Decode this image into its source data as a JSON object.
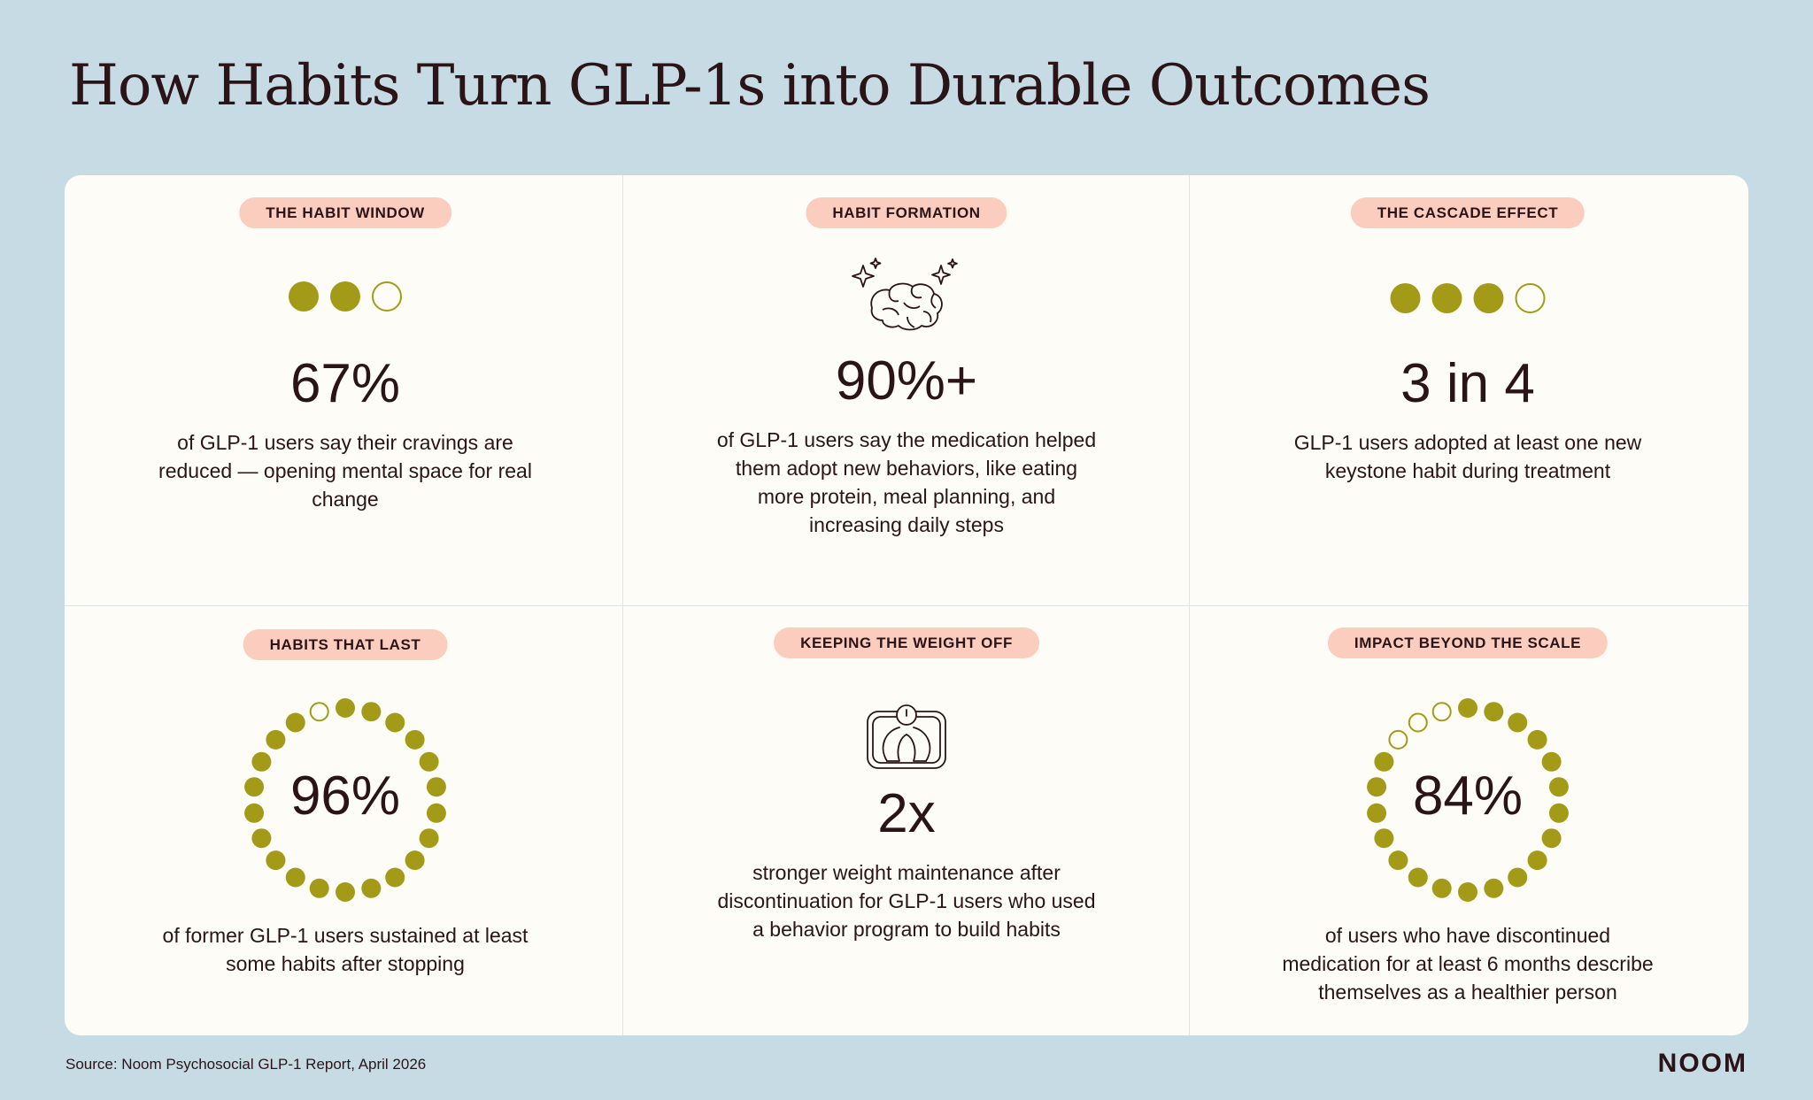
{
  "title": "How Habits Turn GLP-1s into Durable Outcomes",
  "colors": {
    "background": "#c6dbe3",
    "card": "#fdfcf6",
    "pill": "#fbcdbf",
    "dot": "#a39b17",
    "text": "#2b1418"
  },
  "cells": [
    {
      "label": "THE HABIT WINDOW",
      "stat": "67%",
      "description": "of GLP-1 users say their cravings are reduced — opening mental space for real change",
      "dots": {
        "filled": 2,
        "total": 3
      }
    },
    {
      "label": "HABIT FORMATION",
      "stat": "90%+",
      "description": "of GLP-1 users say the medication helped them adopt new behaviors, like eating more protein, meal planning, and increasing daily steps",
      "icon": "brain-sparkle-icon"
    },
    {
      "label": "THE CASCADE EFFECT",
      "stat": "3 in 4",
      "description": "GLP-1 users adopted at least one new keystone habit during treatment",
      "dots": {
        "filled": 3,
        "total": 4
      }
    },
    {
      "label": "HABITS THAT LAST",
      "stat": "96%",
      "description": "of former GLP-1 users sustained at least some habits after stopping",
      "ring": {
        "filled": 21,
        "total": 22
      }
    },
    {
      "label": "KEEPING THE WEIGHT OFF",
      "stat": "2x",
      "description": "stronger weight maintenance after discontinuation for GLP-1 users who used a behavior program to build habits",
      "icon": "scale-icon"
    },
    {
      "label": "IMPACT BEYOND THE SCALE",
      "stat": "84%",
      "description": "of users who have discontinued medication for at least 6 months describe themselves as a healthier person",
      "ring": {
        "filled": 19,
        "total": 22
      }
    }
  ],
  "source": "Source: Noom Psychosocial GLP-1 Report, April 2026",
  "logo": "NOOM"
}
